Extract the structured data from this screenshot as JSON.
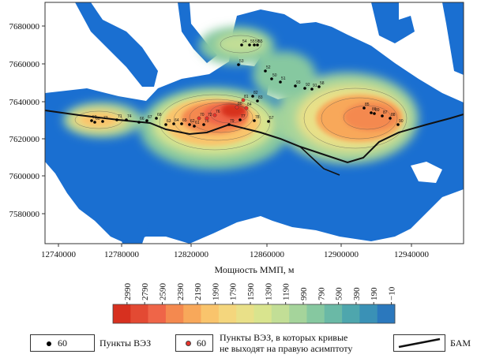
{
  "axes": {
    "x_ticks": [
      "12740000",
      "12780000",
      "12820000",
      "12860000",
      "12900000",
      "12940000"
    ],
    "y_ticks": [
      "7680000",
      "7660000",
      "7640000",
      "7620000",
      "7600000",
      "7580000"
    ],
    "xlabel": "Мощность ММП, м"
  },
  "colorbar": {
    "labels": [
      "2990",
      "2790",
      "2590",
      "2390",
      "2190",
      "1990",
      "1790",
      "1590",
      "1390",
      "1190",
      "990",
      "790",
      "590",
      "390",
      "190",
      "−10"
    ],
    "colors": [
      "#d7301f",
      "#e34a33",
      "#ef6548",
      "#f4894f",
      "#f8a85a",
      "#f9c46c",
      "#f4d67d",
      "#e9e088",
      "#d9e48e",
      "#c2de96",
      "#a5d49b",
      "#86c8a0",
      "#6ab9a6",
      "#4ea6ad",
      "#3a91b6",
      "#2b78bd"
    ]
  },
  "legend": {
    "point_sample": "60",
    "point_label": "Пункты ВЭЗ",
    "red_point_sample": "60",
    "red_point_label_line1": "Пункты ВЭЗ, в которых кривые",
    "red_point_label_line2": "не выходят на правую асимптоту",
    "bam_label": "БАМ"
  },
  "colors": {
    "water": "#1a6fd1",
    "land": "#ffffff",
    "low": "#2b78bd",
    "high": "#d7301f",
    "point_black": "#000000",
    "point_red": "#e8332b"
  },
  "points": {
    "black": [
      "54",
      "55",
      "56",
      "55",
      "53",
      "52",
      "50",
      "51",
      "93",
      "92",
      "91",
      "82",
      "83",
      "73",
      "71",
      "74",
      "66",
      "67",
      "68",
      "63",
      "64",
      "65",
      "62",
      "61",
      "75",
      "77",
      "78",
      "79",
      "57",
      "58",
      "86",
      "85",
      "89",
      "87",
      "88",
      "90",
      "60",
      "59"
    ],
    "red": [
      "84",
      "81",
      "80",
      "76",
      "72",
      "70"
    ]
  }
}
